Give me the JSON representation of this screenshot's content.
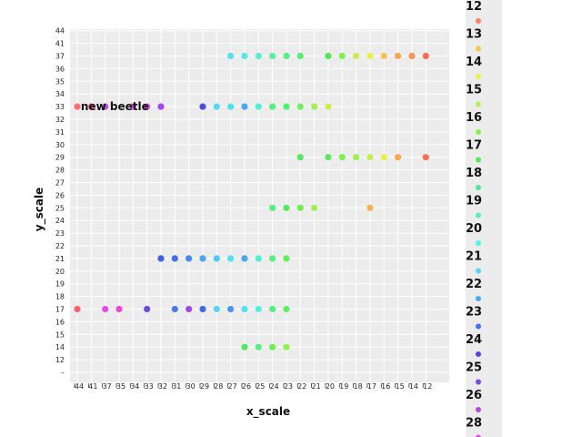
{
  "chart_data": {
    "type": "scatter",
    "title": "",
    "xlabel": "x_scale",
    "ylabel": "y_scale",
    "grid": true,
    "x_reversed": true,
    "x_ticks": [
      "44",
      "41",
      "37",
      "35",
      "34",
      "33",
      "32",
      "31",
      "30",
      "29",
      "28",
      "27",
      "26",
      "25",
      "24",
      "23",
      "22",
      "21",
      "20",
      "19",
      "18",
      "17",
      "16",
      "15",
      "14",
      "12"
    ],
    "y_ticks": [
      "–",
      "12",
      "14",
      "15",
      "16",
      "17",
      "18",
      "19",
      "20",
      "21",
      "22",
      "23",
      "24",
      "25",
      "26",
      "27",
      "28",
      "29",
      "30",
      "31",
      "32",
      "33",
      "34",
      "35",
      "36",
      "37",
      "41",
      "44"
    ],
    "legend": {
      "position": "right",
      "entries": [
        {
          "label": "12",
          "color": "#ff8060"
        },
        {
          "label": "13",
          "color": "#f7c840"
        },
        {
          "label": "14",
          "color": "#e8f050"
        },
        {
          "label": "15",
          "color": "#b8f050"
        },
        {
          "label": "16",
          "color": "#8af050"
        },
        {
          "label": "17",
          "color": "#55e860"
        },
        {
          "label": "18",
          "color": "#50e890"
        },
        {
          "label": "19",
          "color": "#55f0c8"
        },
        {
          "label": "20",
          "color": "#55f0f0"
        },
        {
          "label": "21",
          "color": "#50d8f8"
        },
        {
          "label": "22",
          "color": "#48a8f0"
        },
        {
          "label": "23",
          "color": "#4070f0"
        },
        {
          "label": "24",
          "color": "#5048e0"
        },
        {
          "label": "25",
          "color": "#7a48e8"
        },
        {
          "label": "26",
          "color": "#b048e8"
        },
        {
          "label": "28",
          "color": "#e848e8"
        }
      ]
    },
    "annotations": [
      {
        "text": "new beetle",
        "x": "41",
        "y": "33"
      }
    ],
    "series": [
      {
        "y": "37",
        "points": [
          {
            "x": "27",
            "c": "#55e0f0"
          },
          {
            "x": "26",
            "c": "#55e8e8"
          },
          {
            "x": "25",
            "c": "#55f0d0"
          },
          {
            "x": "24",
            "c": "#55f0a0"
          },
          {
            "x": "23",
            "c": "#55f080"
          },
          {
            "x": "22",
            "c": "#55f070"
          },
          {
            "x": "20",
            "c": "#55e850"
          },
          {
            "x": "19",
            "c": "#80f050"
          },
          {
            "x": "18",
            "c": "#c0f050"
          },
          {
            "x": "17",
            "c": "#e8f050"
          },
          {
            "x": "16",
            "c": "#f7c050"
          },
          {
            "x": "15",
            "c": "#f8a850"
          },
          {
            "x": "14",
            "c": "#f89850"
          },
          {
            "x": "12",
            "c": "#ff6a50"
          }
        ]
      },
      {
        "y": "33",
        "points": [
          {
            "x": "44",
            "c": "#ff7070"
          },
          {
            "x": "41",
            "c": "#ff6090"
          },
          {
            "x": "37",
            "c": "#c050e8"
          },
          {
            "x": "34",
            "c": "#e048e8"
          },
          {
            "x": "33",
            "c": "#e848e0"
          },
          {
            "x": "32",
            "c": "#a048e8"
          },
          {
            "x": "29",
            "c": "#5048e0"
          },
          {
            "x": "28",
            "c": "#55d8f8"
          },
          {
            "x": "27",
            "c": "#55e0f0"
          },
          {
            "x": "26",
            "c": "#48a8f0"
          },
          {
            "x": "25",
            "c": "#55f0d0"
          },
          {
            "x": "24",
            "c": "#55f080"
          },
          {
            "x": "23",
            "c": "#55f070"
          },
          {
            "x": "22",
            "c": "#70f060"
          },
          {
            "x": "21",
            "c": "#a0f050"
          },
          {
            "x": "20",
            "c": "#c8f050"
          }
        ]
      },
      {
        "y": "29",
        "points": [
          {
            "x": "22",
            "c": "#55e860"
          },
          {
            "x": "20",
            "c": "#60e860"
          },
          {
            "x": "19",
            "c": "#80f050"
          },
          {
            "x": "18",
            "c": "#a0f050"
          },
          {
            "x": "17",
            "c": "#c0f050"
          },
          {
            "x": "16",
            "c": "#e8f050"
          },
          {
            "x": "15",
            "c": "#f8a850"
          },
          {
            "x": "12",
            "c": "#ff7058"
          }
        ]
      },
      {
        "y": "25",
        "points": [
          {
            "x": "24",
            "c": "#55f080"
          },
          {
            "x": "23",
            "c": "#55e860"
          },
          {
            "x": "22",
            "c": "#70f050"
          },
          {
            "x": "21",
            "c": "#a0f050"
          },
          {
            "x": "17",
            "c": "#f8b050"
          }
        ]
      },
      {
        "y": "21",
        "points": [
          {
            "x": "32",
            "c": "#4060e8"
          },
          {
            "x": "31",
            "c": "#4070f0"
          },
          {
            "x": "30",
            "c": "#4888f0"
          },
          {
            "x": "29",
            "c": "#48a8f0"
          },
          {
            "x": "28",
            "c": "#50c8f8"
          },
          {
            "x": "27",
            "c": "#55e0f0"
          },
          {
            "x": "26",
            "c": "#48a8f0"
          },
          {
            "x": "25",
            "c": "#55f0d0"
          },
          {
            "x": "24",
            "c": "#55f080"
          },
          {
            "x": "23",
            "c": "#60f060"
          }
        ]
      },
      {
        "y": "17",
        "points": [
          {
            "x": "44",
            "c": "#ff6070"
          },
          {
            "x": "37",
            "c": "#e848e8"
          },
          {
            "x": "35",
            "c": "#e848e0"
          },
          {
            "x": "33",
            "c": "#7048e0"
          },
          {
            "x": "31",
            "c": "#4878f0"
          },
          {
            "x": "30",
            "c": "#a048e8"
          },
          {
            "x": "29",
            "c": "#4068e8"
          },
          {
            "x": "28",
            "c": "#55d8f8"
          },
          {
            "x": "27",
            "c": "#4898f0"
          },
          {
            "x": "26",
            "c": "#55e0f0"
          },
          {
            "x": "25",
            "c": "#55f0d8"
          },
          {
            "x": "24",
            "c": "#55f080"
          },
          {
            "x": "23",
            "c": "#60f060"
          }
        ]
      },
      {
        "y": "14",
        "points": [
          {
            "x": "26",
            "c": "#55e860"
          },
          {
            "x": "25",
            "c": "#55f080"
          },
          {
            "x": "24",
            "c": "#70f050"
          },
          {
            "x": "23",
            "c": "#90f050"
          }
        ]
      }
    ]
  }
}
